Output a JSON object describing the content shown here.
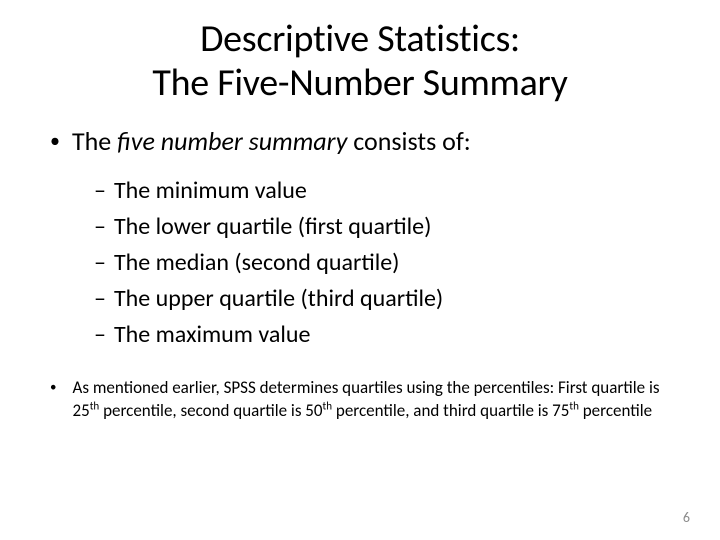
{
  "colors": {
    "background": "#ffffff",
    "text": "#000000",
    "page_num": "#8b8b8b"
  },
  "typography": {
    "title_fontsize": 38,
    "l1_fontsize": 26,
    "l2_fontsize": 24,
    "l3_fontsize": 17,
    "pagenum_fontsize": 14,
    "font_family": "Calibri"
  },
  "title_line1": "Descriptive Statistics:",
  "title_line2": "The Five-Number Summary",
  "intro_pre": "The ",
  "intro_italic": "five number summary",
  "intro_post": " consists of:",
  "sub_items": [
    "The minimum value",
    "The lower quartile (first quartile)",
    "The median (second quartile)",
    "The upper quartile (third quartile)",
    "The maximum value"
  ],
  "note_pre": "As mentioned earlier, SPSS determines quartiles using the percentiles: First quartile is 25",
  "note_sup1": "th",
  "note_mid1": " percentile, second quartile is 50",
  "note_sup2": "th",
  "note_mid2": " percentile, and third quartile is 75",
  "note_sup3": "th",
  "note_post": " percentile",
  "page_number": "6"
}
